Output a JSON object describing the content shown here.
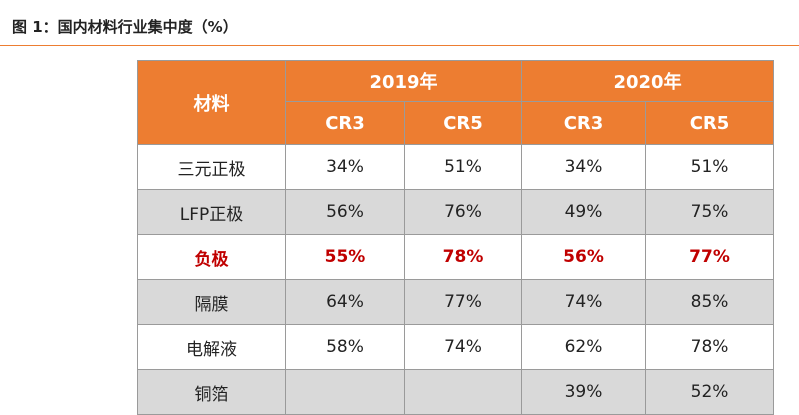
{
  "figure": {
    "title": "图 1：国内材料行业集中度（%）"
  },
  "table": {
    "corner_label": "材料",
    "years": [
      "2019年",
      "2020年"
    ],
    "metrics": [
      "CR3",
      "CR5",
      "CR3",
      "CR5"
    ],
    "rows": [
      {
        "name": "三元正极",
        "values": [
          "34%",
          "51%",
          "34%",
          "51%"
        ]
      },
      {
        "name": "LFP正极",
        "values": [
          "56%",
          "76%",
          "49%",
          "75%"
        ]
      },
      {
        "name": "负极",
        "values": [
          "55%",
          "78%",
          "56%",
          "77%"
        ]
      },
      {
        "name": "隔膜",
        "values": [
          "64%",
          "77%",
          "74%",
          "85%"
        ]
      },
      {
        "name": "电解液",
        "values": [
          "58%",
          "74%",
          "62%",
          "78%"
        ]
      },
      {
        "name": "铜箔",
        "values": [
          "",
          "",
          "39%",
          "52%"
        ]
      }
    ]
  },
  "colors": {
    "header_background": "#ED7D31",
    "header_text": "#FFFFFF",
    "shaded_row": "#D9D9D9",
    "highlight_text": "#C00000",
    "title_rule": "#ED7D31"
  }
}
